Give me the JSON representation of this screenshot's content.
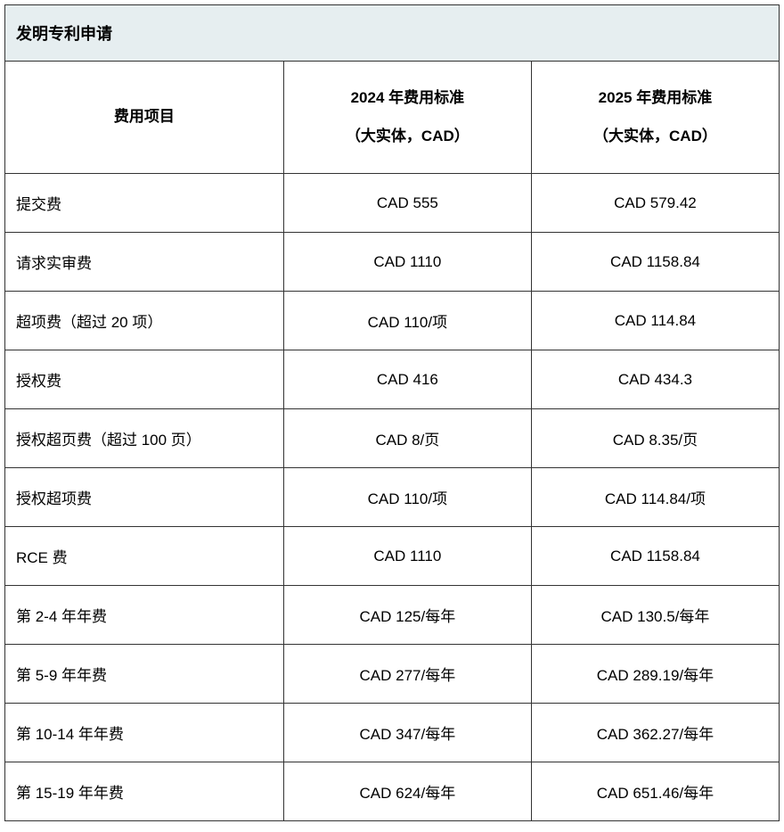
{
  "table": {
    "title": "发明专利申请",
    "columns": [
      {
        "label": "费用项目",
        "sublabel": ""
      },
      {
        "label": "2024 年费用标准",
        "sublabel": "（大实体，CAD）"
      },
      {
        "label": "2025 年费用标准",
        "sublabel": "（大实体，CAD）"
      }
    ],
    "rows": [
      {
        "item": "提交费",
        "fee2024": "CAD 555",
        "fee2025": "CAD 579.42"
      },
      {
        "item": "请求实审费",
        "fee2024": "CAD 1110",
        "fee2025": "CAD 1158.84"
      },
      {
        "item": "超项费（超过 20 项）",
        "fee2024": "CAD 110/项",
        "fee2025": "CAD 114.84"
      },
      {
        "item": "授权费",
        "fee2024": "CAD 416",
        "fee2025": "CAD 434.3"
      },
      {
        "item": "授权超页费（超过 100 页）",
        "fee2024": "CAD 8/页",
        "fee2025": "CAD 8.35/页"
      },
      {
        "item": "授权超项费",
        "fee2024": "CAD 110/项",
        "fee2025": "CAD 114.84/项"
      },
      {
        "item": "RCE 费",
        "fee2024": "CAD 1110",
        "fee2025": "CAD 1158.84"
      },
      {
        "item": "第 2-4 年年费",
        "fee2024": "CAD 125/每年",
        "fee2025": "CAD 130.5/每年"
      },
      {
        "item": "第 5-9 年年费",
        "fee2024": "CAD 277/每年",
        "fee2025": "CAD 289.19/每年"
      },
      {
        "item": "第 10-14 年年费",
        "fee2024": "CAD 347/每年",
        "fee2025": "CAD 362.27/每年"
      },
      {
        "item": "第 15-19 年年费",
        "fee2024": "CAD 624/每年",
        "fee2025": "CAD 651.46/每年"
      }
    ],
    "styling": {
      "title_bg_color": "#e6eef0",
      "cell_bg_color": "#ffffff",
      "border_color": "#333333",
      "text_color": "#000000",
      "title_fontsize": 18,
      "header_fontsize": 17,
      "body_fontsize": 17,
      "column_widths_pct": [
        36,
        32,
        32
      ]
    }
  }
}
